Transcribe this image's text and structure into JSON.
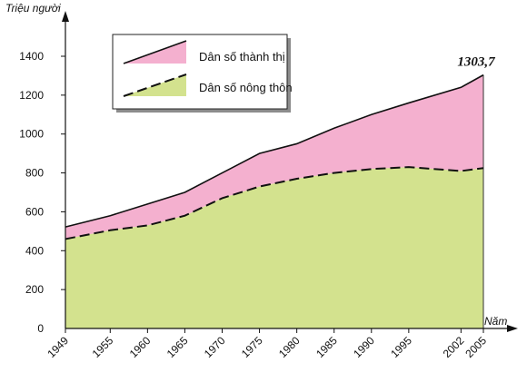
{
  "chart_data": {
    "type": "area",
    "ylabel": "Triệu người",
    "xlabel": "Năm",
    "x_ticks": [
      "1949",
      "1955",
      "1960",
      "1965",
      "1970",
      "1975",
      "1980",
      "1985",
      "1990",
      "1995",
      "2002",
      "2005"
    ],
    "y_ticks": [
      "0",
      "200",
      "400",
      "600",
      "800",
      "1000",
      "1200",
      "1400"
    ],
    "ylim": [
      0,
      1400
    ],
    "grid": false,
    "legend_position": "top-left",
    "series": [
      {
        "name": "Dân số thành thị",
        "color": "#f4b0cf",
        "line_style": "solid",
        "x": [
          1949,
          1955,
          1960,
          1965,
          1970,
          1975,
          1980,
          1985,
          1990,
          1995,
          2002,
          2005
        ],
        "values": [
          522,
          580,
          640,
          700,
          800,
          900,
          950,
          1030,
          1100,
          1160,
          1240,
          1303.7
        ]
      },
      {
        "name": "Dân số nông thôn",
        "color": "#d3e28e",
        "line_style": "dashed",
        "x": [
          1949,
          1955,
          1960,
          1965,
          1970,
          1975,
          1980,
          1985,
          1990,
          1995,
          2002,
          2005
        ],
        "values": [
          460,
          505,
          530,
          580,
          670,
          730,
          770,
          800,
          820,
          830,
          810,
          825
        ]
      }
    ],
    "annotations": [
      {
        "text": "1303,7",
        "x": 2005,
        "y": 1303.7
      }
    ]
  }
}
